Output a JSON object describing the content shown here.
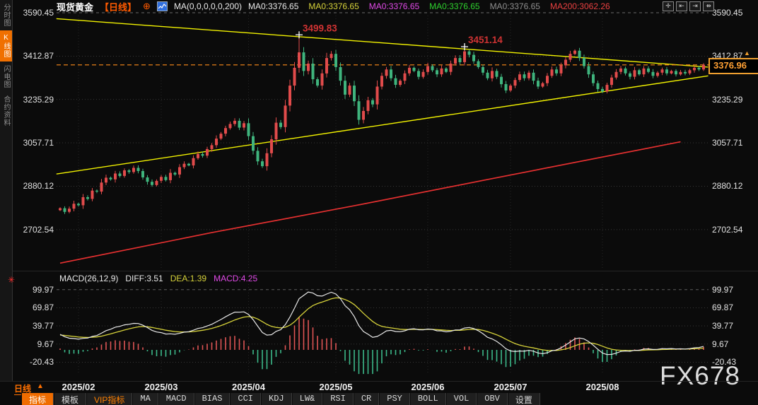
{
  "header": {
    "symbol": "现货黄金",
    "period_tag": "【日线】",
    "ma_settings": "MA(0,0,0,0,0,200)",
    "ma_labels": [
      {
        "text": "MA0:3376.65",
        "color": "#e8e8e8"
      },
      {
        "text": "MA0:3376.65",
        "color": "#d6d23a"
      },
      {
        "text": "MA0:3376.65",
        "color": "#e14ae8"
      },
      {
        "text": "MA0:3376.65",
        "color": "#2ed12e"
      },
      {
        "text": "MA0:3376.65",
        "color": "#8e8e8e"
      },
      {
        "text": "MA200:3062.26",
        "color": "#e84040"
      }
    ],
    "window_icons": [
      {
        "name": "move-tool-icon",
        "glyph": "✛"
      },
      {
        "name": "axis-snap-left-icon",
        "glyph": "⇤"
      },
      {
        "name": "axis-snap-right-icon",
        "glyph": "⇥"
      },
      {
        "name": "pan-right-icon",
        "glyph": "⇻"
      }
    ]
  },
  "sidebar": {
    "items": [
      {
        "label": "分时图",
        "active": false
      },
      {
        "label": "K线图",
        "active": true
      },
      {
        "label": "闪电图",
        "active": false
      },
      {
        "label": "合约资料",
        "active": false
      }
    ]
  },
  "macd_header": {
    "title": "MACD(26,12,9)",
    "diff": "DIFF:3.51",
    "dea": "DEA:1.39",
    "macd": "MACD:4.25"
  },
  "price_axis": {
    "current_price": "3376.96"
  },
  "x_axis": {
    "period_label": "日线"
  },
  "toolbar": {
    "items": [
      {
        "label": "指标",
        "style": "active",
        "cjk": true
      },
      {
        "label": "模板",
        "style": "",
        "cjk": true
      },
      {
        "label": "VIP指标",
        "style": "vip",
        "cjk": true
      },
      {
        "label": "MA",
        "style": ""
      },
      {
        "label": "MACD",
        "style": ""
      },
      {
        "label": "BIAS",
        "style": ""
      },
      {
        "label": "CCI",
        "style": ""
      },
      {
        "label": "KDJ",
        "style": ""
      },
      {
        "label": "LW&",
        "style": ""
      },
      {
        "label": "RSI",
        "style": ""
      },
      {
        "label": "CR",
        "style": ""
      },
      {
        "label": "PSY",
        "style": ""
      },
      {
        "label": "BOLL",
        "style": ""
      },
      {
        "label": "VOL",
        "style": ""
      },
      {
        "label": "OBV",
        "style": ""
      },
      {
        "label": "设置",
        "style": "",
        "cjk": true
      }
    ]
  },
  "watermark": "FX678",
  "colors": {
    "up": "#e14b4b",
    "down": "#3fb47d",
    "trendline": "#f2f200",
    "ma200": "#e53030",
    "price_line": "#ff8c1a",
    "accent": "#f07000",
    "diff_line": "#e8e8e8",
    "dea_line": "#d6d23a"
  },
  "chart_data": {
    "type": "candlestick+macd",
    "title": "现货黄金 日线 (Spot Gold Daily)",
    "price_gridlines": [
      3590.45,
      3412.87,
      3235.29,
      3057.71,
      2880.12,
      2702.54
    ],
    "macd_gridlines": [
      99.97,
      69.87,
      39.77,
      9.67,
      -20.43
    ],
    "current_price": 3376.96,
    "macd_values": {
      "diff": 3.51,
      "dea": 1.39,
      "macd": 4.25
    },
    "ma200_last": 3062.26,
    "month_ticks": [
      {
        "label": "2025/02",
        "index": 4
      },
      {
        "label": "2025/03",
        "index": 22
      },
      {
        "label": "2025/04",
        "index": 41
      },
      {
        "label": "2025/05",
        "index": 60
      },
      {
        "label": "2025/06",
        "index": 80
      },
      {
        "label": "2025/07",
        "index": 98
      },
      {
        "label": "2025/08",
        "index": 118
      }
    ],
    "closes": [
      2790,
      2775,
      2788,
      2808,
      2802,
      2835,
      2828,
      2862,
      2858,
      2895,
      2915,
      2908,
      2932,
      2922,
      2945,
      2938,
      2955,
      2942,
      2916,
      2898,
      2885,
      2902,
      2918,
      2905,
      2935,
      2928,
      2958,
      2972,
      2965,
      2995,
      3012,
      3005,
      3032,
      3048,
      3075,
      3095,
      3118,
      3135,
      3148,
      3120,
      3138,
      3085,
      3025,
      2982,
      2962,
      3015,
      3072,
      3140,
      3122,
      3210,
      3292,
      3365,
      3428,
      3352,
      3382,
      3318,
      3292,
      3342,
      3405,
      3422,
      3368,
      3312,
      3255,
      3292,
      3228,
      3152,
      3188,
      3232,
      3215,
      3288,
      3332,
      3358,
      3322,
      3295,
      3312,
      3342,
      3365,
      3352,
      3328,
      3348,
      3372,
      3355,
      3338,
      3362,
      3348,
      3382,
      3405,
      3388,
      3432,
      3418,
      3392,
      3368,
      3345,
      3322,
      3352,
      3328,
      3298,
      3272,
      3292,
      3315,
      3338,
      3322,
      3345,
      3312,
      3288,
      3302,
      3332,
      3358,
      3342,
      3375,
      3398,
      3422,
      3435,
      3405,
      3372,
      3338,
      3302,
      3278,
      3268,
      3295,
      3325,
      3348,
      3362,
      3342,
      3328,
      3355,
      3338,
      3362,
      3348,
      3332,
      3345,
      3358,
      3342,
      3352,
      3338,
      3348,
      3342,
      3355,
      3365,
      3358,
      3377
    ],
    "special_highs": {
      "52": 3499.83,
      "88": 3451.14
    },
    "annotations": [
      {
        "text": "3499.83",
        "index": 52,
        "price": 3499.83
      },
      {
        "text": "3451.14",
        "index": 88,
        "price": 3451.14
      }
    ],
    "trendlines": [
      {
        "name": "descending-resistance",
        "p1": {
          "index": -0.8,
          "price": 3566
        },
        "p2": {
          "index": 141,
          "price": 3368
        }
      },
      {
        "name": "ascending-support",
        "p1": {
          "index": -0.8,
          "price": 2930
        },
        "p2": {
          "index": 141,
          "price": 3332
        }
      }
    ],
    "ma200_points": [
      {
        "index": 0,
        "price": 2565
      },
      {
        "index": 33,
        "price": 2690
      },
      {
        "index": 64,
        "price": 2800
      },
      {
        "index": 95,
        "price": 2915
      },
      {
        "index": 135,
        "price": 3062
      }
    ]
  }
}
